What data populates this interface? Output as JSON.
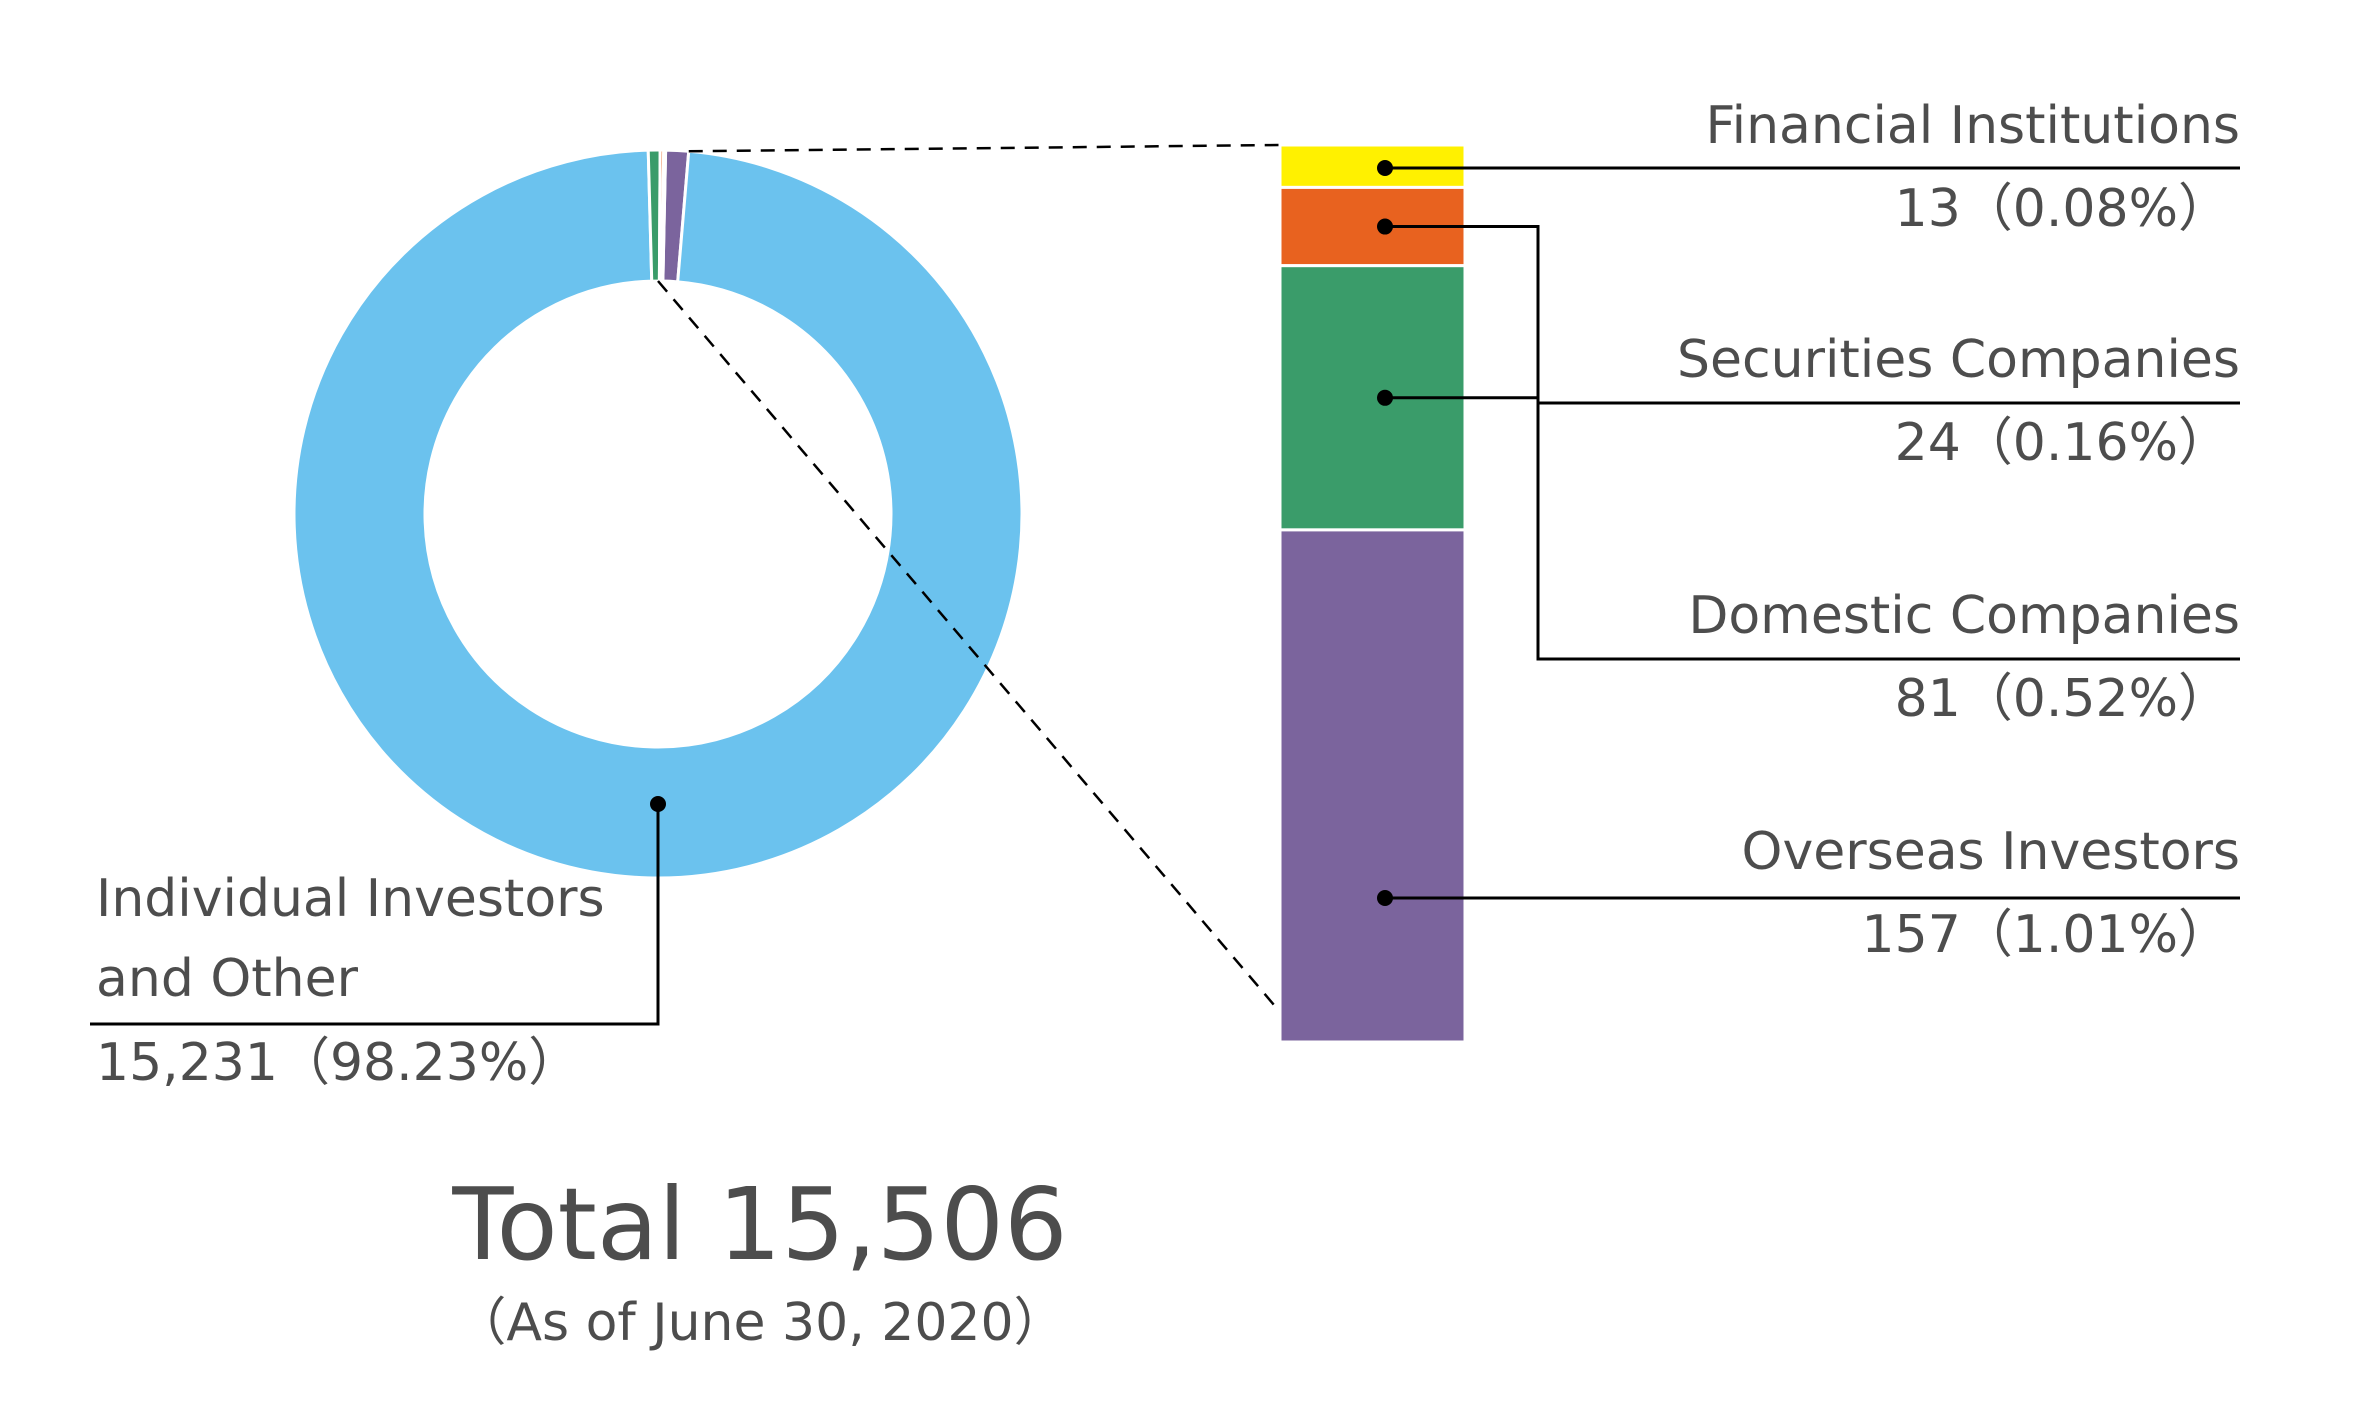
{
  "chart_data": {
    "type": "pie",
    "style": "donut with stacked-bar breakdown",
    "total_label": "Total 15,506",
    "date_label": "（As of June 30, 2020）",
    "segments": [
      {
        "key": "individual",
        "name_lines": [
          "Individual Investors",
          "and Other"
        ],
        "count": 15231,
        "value_text": "15,231（98.23%）",
        "percent": 98.23,
        "color": "#6bc2ee"
      },
      {
        "key": "overseas",
        "name_lines": [
          "Overseas Investors"
        ],
        "count": 157,
        "value_text": "157（1.01%）",
        "percent": 1.01,
        "color": "#7b649d"
      },
      {
        "key": "domestic",
        "name_lines": [
          "Domestic Companies"
        ],
        "count": 81,
        "value_text": "81（0.52%）",
        "percent": 0.52,
        "color": "#3a9c6a"
      },
      {
        "key": "securities",
        "name_lines": [
          "Securities Companies"
        ],
        "count": 24,
        "value_text": "24（0.16%）",
        "percent": 0.16,
        "color": "#e8621f"
      },
      {
        "key": "financial",
        "name_lines": [
          "Financial Institutions"
        ],
        "count": 13,
        "value_text": "13（0.08%）",
        "percent": 0.08,
        "color": "#fff100"
      }
    ]
  }
}
